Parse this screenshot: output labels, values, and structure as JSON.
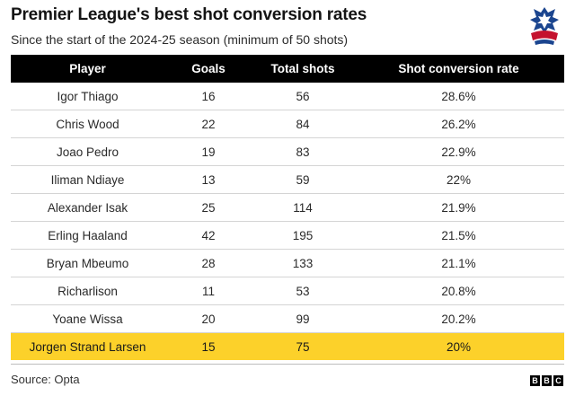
{
  "title": "Premier League's best shot conversion rates",
  "subtitle": "Since the start of the 2024-25 season (minimum of 50 shots)",
  "source": "Source: Opta",
  "brand": {
    "logo_letters": [
      "B",
      "B",
      "C"
    ],
    "crest_icon": "crystal-palace-crest-icon"
  },
  "colors": {
    "header_bg": "#000000",
    "highlight": "#fcd12a",
    "crest_blue": "#1b458f",
    "crest_red": "#c4122e"
  },
  "chart_data": {
    "type": "table",
    "title": "Premier League's best shot conversion rates",
    "subtitle": "Since the start of the 2024-25 season (minimum of 50 shots)",
    "columns": [
      "Player",
      "Goals",
      "Total shots",
      "Shot conversion rate"
    ],
    "rows": [
      {
        "player": "Igor Thiago",
        "goals": "16",
        "shots": "56",
        "rate": "28.6%"
      },
      {
        "player": "Chris Wood",
        "goals": "22",
        "shots": "84",
        "rate": "26.2%"
      },
      {
        "player": "Joao Pedro",
        "goals": "19",
        "shots": "83",
        "rate": "22.9%"
      },
      {
        "player": "Iliman Ndiaye",
        "goals": "13",
        "shots": "59",
        "rate": "22%"
      },
      {
        "player": "Alexander Isak",
        "goals": "25",
        "shots": "114",
        "rate": "21.9%"
      },
      {
        "player": "Erling Haaland",
        "goals": "42",
        "shots": "195",
        "rate": "21.5%"
      },
      {
        "player": "Bryan Mbeumo",
        "goals": "28",
        "shots": "133",
        "rate": "21.1%"
      },
      {
        "player": "Richarlison",
        "goals": "11",
        "shots": "53",
        "rate": "20.8%"
      },
      {
        "player": "Yoane Wissa",
        "goals": "20",
        "shots": "99",
        "rate": "20.2%"
      },
      {
        "player": "Jorgen Strand Larsen",
        "goals": "15",
        "shots": "75",
        "rate": "20%",
        "highlight": true
      }
    ]
  }
}
